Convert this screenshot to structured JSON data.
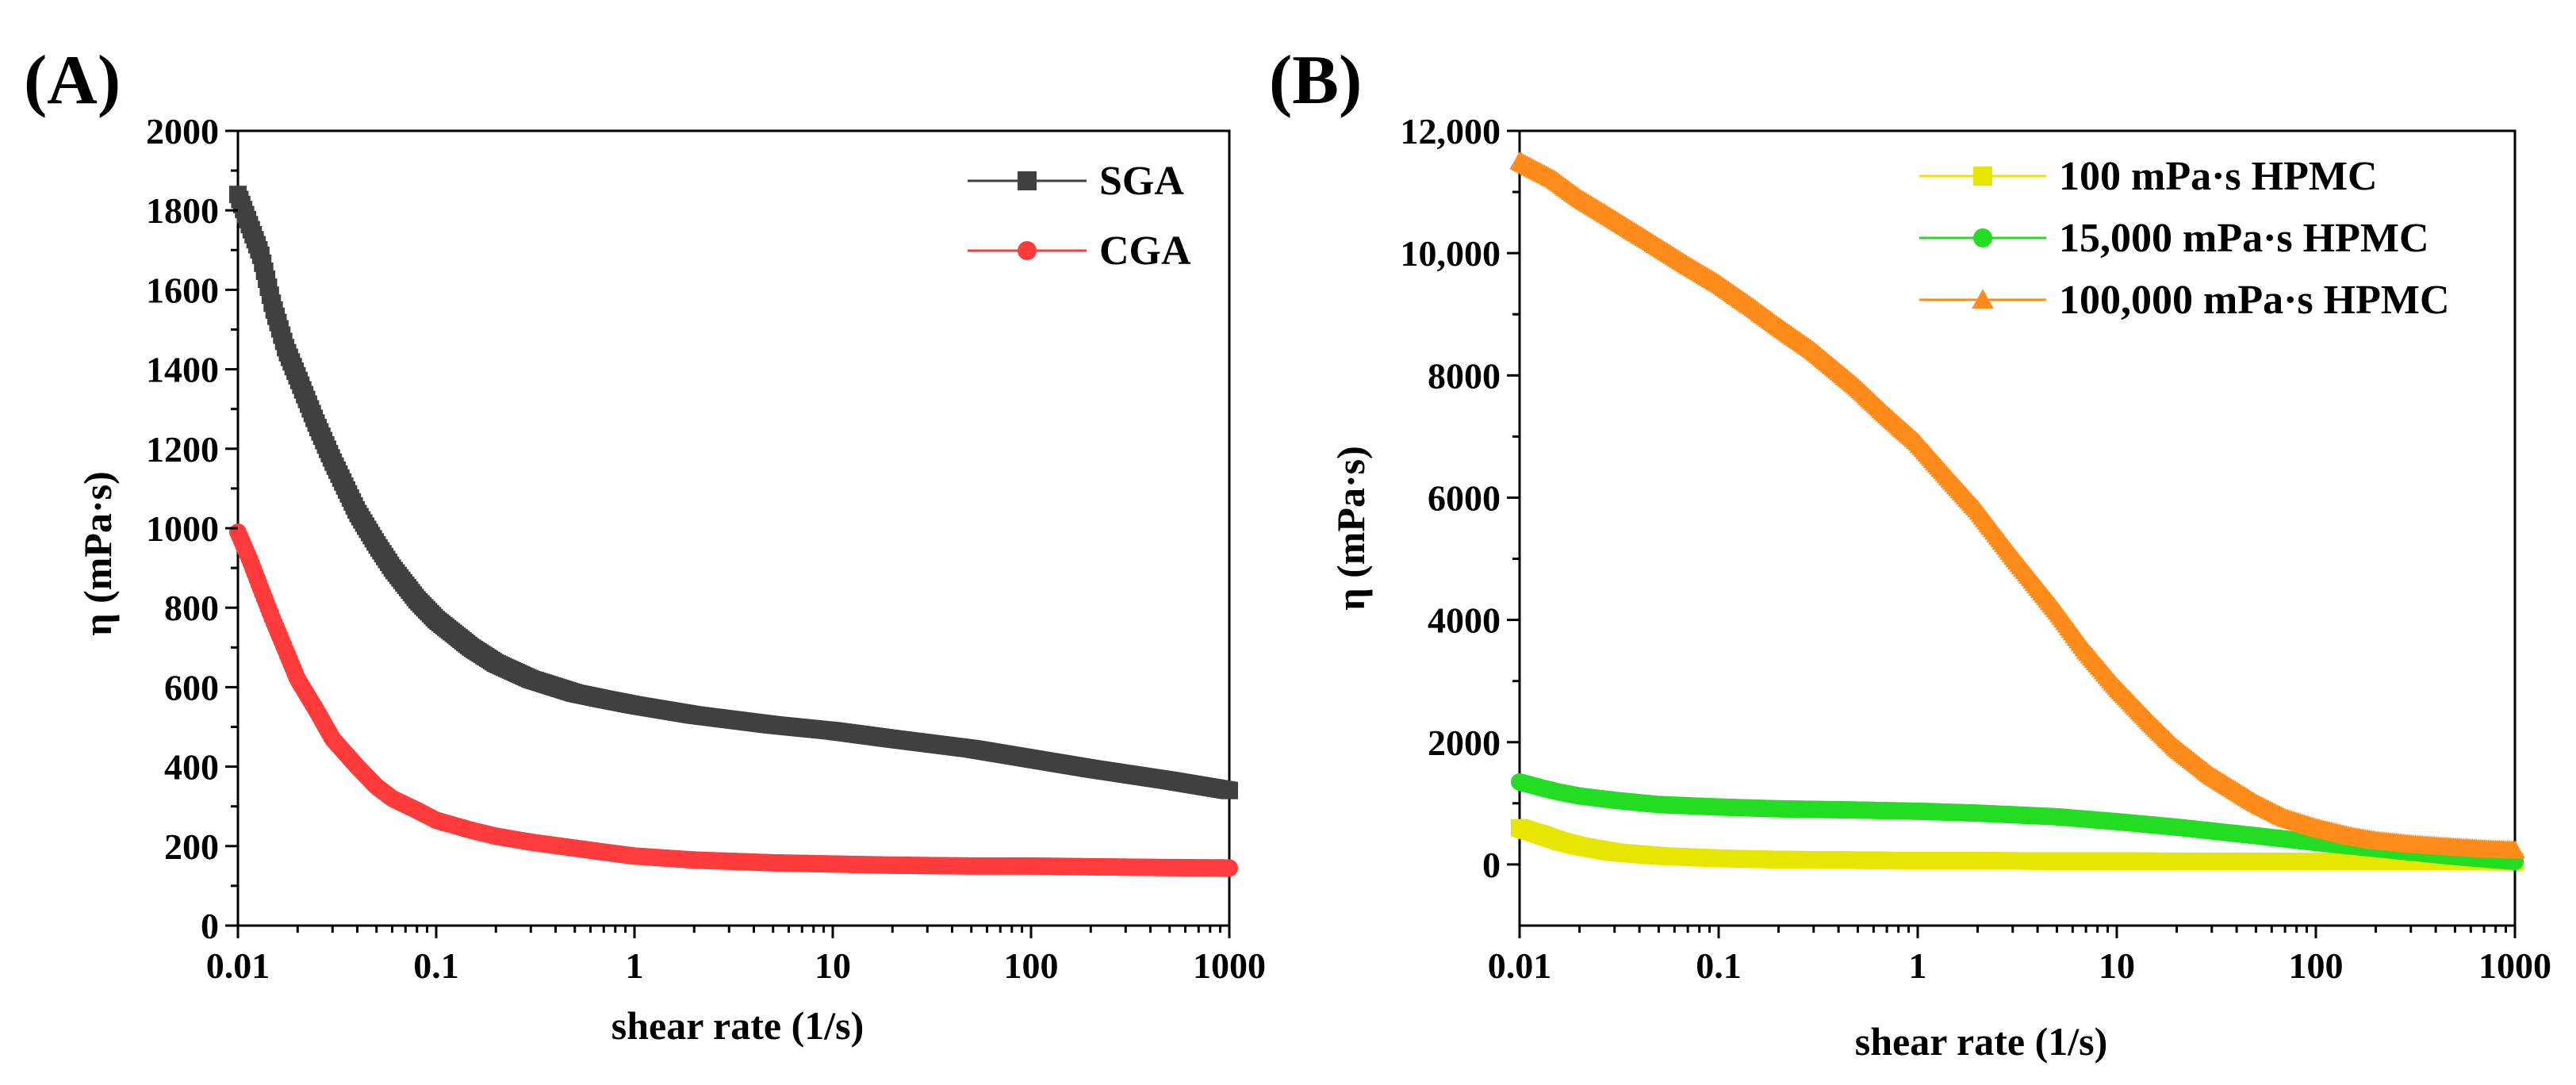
{
  "chart_data": [
    {
      "type": "scatter",
      "panel_label": "(A)",
      "xlabel": "shear rate (1/s)",
      "ylabel": "η (mPa·s)",
      "xscale": "log",
      "xlim": [
        0.01,
        1000
      ],
      "ylim": [
        0,
        2000
      ],
      "xticks": [
        "0.01",
        "0.1",
        "1",
        "10",
        "100",
        "1000"
      ],
      "yticks": [
        "0",
        "200",
        "400",
        "600",
        "800",
        "1000",
        "1200",
        "1400",
        "1600",
        "1800",
        "2000"
      ],
      "legend_position": "top-right",
      "grid": false,
      "series": [
        {
          "name": "SGA",
          "color": "#404040",
          "marker": "square",
          "x": [
            0.01,
            0.0115,
            0.013,
            0.015,
            0.0175,
            0.02,
            0.025,
            0.03,
            0.04,
            0.05,
            0.06,
            0.08,
            0.1,
            0.15,
            0.2,
            0.3,
            0.5,
            0.7,
            1,
            2,
            5,
            10,
            20,
            50,
            100,
            200,
            500,
            1000
          ],
          "values": [
            1840,
            1760,
            1690,
            1560,
            1450,
            1380,
            1260,
            1170,
            1040,
            960,
            900,
            820,
            770,
            700,
            660,
            620,
            585,
            570,
            555,
            530,
            505,
            490,
            470,
            445,
            420,
            395,
            365,
            340
          ]
        },
        {
          "name": "CGA",
          "color": "#ff3b3b",
          "marker": "circle",
          "x": [
            0.01,
            0.0115,
            0.013,
            0.015,
            0.0175,
            0.02,
            0.025,
            0.03,
            0.04,
            0.05,
            0.06,
            0.08,
            0.1,
            0.15,
            0.2,
            0.3,
            0.5,
            0.7,
            1,
            2,
            5,
            10,
            20,
            50,
            100,
            200,
            500,
            1000
          ],
          "values": [
            990,
            920,
            850,
            770,
            690,
            620,
            540,
            470,
            400,
            350,
            320,
            290,
            265,
            240,
            225,
            210,
            195,
            185,
            175,
            165,
            158,
            155,
            152,
            150,
            150,
            148,
            146,
            145
          ]
        }
      ]
    },
    {
      "type": "scatter",
      "panel_label": "(B)",
      "xlabel": "shear rate (1/s)",
      "ylabel": "η (mPa·s)",
      "xscale": "log",
      "xlim": [
        0.01,
        1000
      ],
      "ylim": [
        -1000,
        12000
      ],
      "xticks": [
        "0.01",
        "0.1",
        "1",
        "10",
        "100",
        "1000"
      ],
      "yticks": [
        "0",
        "2000",
        "4000",
        "6000",
        "8000",
        "10,000",
        "12,000"
      ],
      "legend_position": "top-right",
      "grid": false,
      "series": [
        {
          "name": "100 mPa·s HPMC",
          "color": "#e6e600",
          "marker": "square",
          "x": [
            0.01,
            0.013,
            0.016,
            0.02,
            0.03,
            0.05,
            0.1,
            0.2,
            0.5,
            1,
            2,
            5,
            10,
            20,
            50,
            100,
            200,
            500,
            1000
          ],
          "values": [
            600,
            480,
            380,
            300,
            200,
            140,
            100,
            80,
            70,
            60,
            60,
            55,
            55,
            50,
            50,
            50,
            50,
            50,
            50
          ]
        },
        {
          "name": "15,000 mPa·s HPMC",
          "color": "#22dd22",
          "marker": "circle",
          "x": [
            0.01,
            0.013,
            0.016,
            0.02,
            0.03,
            0.05,
            0.1,
            0.2,
            0.5,
            1,
            2,
            5,
            10,
            20,
            50,
            100,
            200,
            500,
            1000
          ],
          "values": [
            1350,
            1250,
            1180,
            1120,
            1050,
            980,
            940,
            910,
            890,
            870,
            840,
            780,
            700,
            610,
            470,
            360,
            260,
            130,
            50
          ]
        },
        {
          "name": "100,000 mPa·s HPMC",
          "color": "#ff8c1a",
          "marker": "triangle",
          "x": [
            0.01,
            0.015,
            0.02,
            0.03,
            0.05,
            0.07,
            0.1,
            0.15,
            0.2,
            0.3,
            0.5,
            0.7,
            1,
            1.5,
            2,
            3,
            5,
            7,
            10,
            15,
            20,
            30,
            50,
            70,
            100,
            150,
            200,
            300,
            500,
            700,
            1000
          ],
          "values": [
            11500,
            11200,
            10900,
            10550,
            10100,
            9800,
            9500,
            9100,
            8800,
            8400,
            7800,
            7350,
            6900,
            6250,
            5800,
            5050,
            4150,
            3500,
            2900,
            2300,
            1900,
            1450,
            1000,
            760,
            600,
            460,
            390,
            330,
            280,
            250,
            230
          ]
        }
      ]
    }
  ]
}
